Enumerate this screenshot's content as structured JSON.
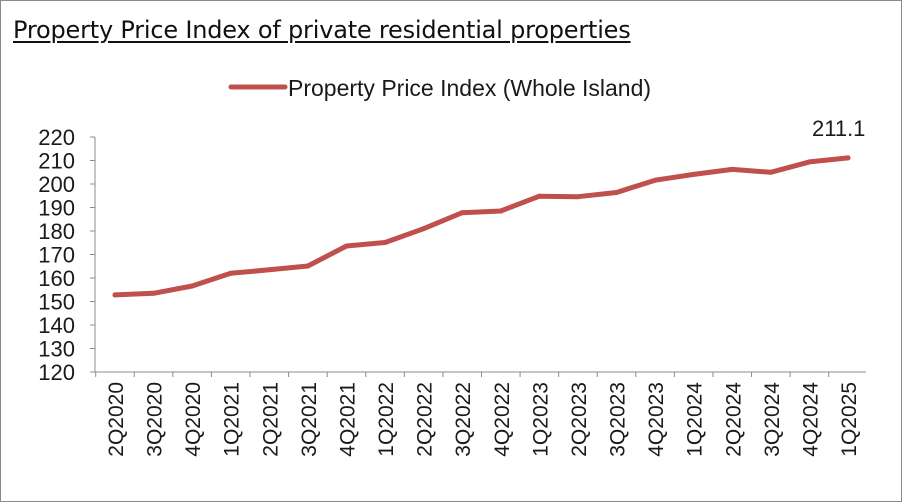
{
  "page": {
    "title": "Property Price Index of private residential properties"
  },
  "chart_data": {
    "type": "line",
    "title": "",
    "xlabel": "",
    "ylabel": "",
    "ylim": [
      120,
      220
    ],
    "yticks": [
      120,
      130,
      140,
      150,
      160,
      170,
      180,
      190,
      200,
      210,
      220
    ],
    "grid": false,
    "legend_position": "top-center",
    "categories": [
      "2Q2020",
      "3Q2020",
      "4Q2020",
      "1Q2021",
      "2Q2021",
      "3Q2021",
      "4Q2021",
      "1Q2022",
      "2Q2022",
      "3Q2022",
      "4Q2022",
      "1Q2023",
      "2Q2023",
      "3Q2023",
      "4Q2023",
      "1Q2024",
      "2Q2024",
      "3Q2024",
      "4Q2024",
      "1Q2025"
    ],
    "series": [
      {
        "name": "Property Price Index (Whole Island)",
        "color": "#c0504d",
        "values": [
          152.8,
          153.5,
          156.6,
          162.0,
          163.5,
          165.1,
          173.6,
          175.1,
          181.0,
          187.8,
          188.5,
          194.8,
          194.6,
          196.4,
          201.6,
          204.1,
          206.2,
          205.0,
          209.4,
          211.1
        ]
      }
    ],
    "annotations": [
      {
        "text": "211.1"
      }
    ]
  }
}
